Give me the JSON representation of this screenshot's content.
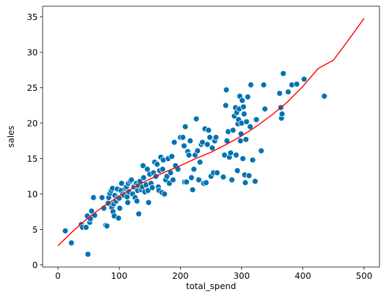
{
  "chart_data": {
    "type": "scatter",
    "title": "",
    "xlabel": "total_spend",
    "ylabel": "sales",
    "xlim": [
      -25,
      525
    ],
    "ylim": [
      -0.3,
      36.5
    ],
    "x_ticks": [
      0,
      100,
      200,
      300,
      400,
      500
    ],
    "y_ticks": [
      0,
      5,
      10,
      15,
      20,
      25,
      30,
      35
    ],
    "grid": false,
    "legend": "none",
    "colors": {
      "points": "#0173b2",
      "point_edge": "#ffffff",
      "fit_line": "#ff0000",
      "axis": "#000000"
    },
    "series": [
      {
        "kind": "scatter",
        "points": [
          [
            12,
            4.8
          ],
          [
            22,
            3.1
          ],
          [
            38,
            5.7
          ],
          [
            40,
            5.3
          ],
          [
            46,
            5.3
          ],
          [
            48,
            6.9
          ],
          [
            49,
            1.5
          ],
          [
            52,
            6.0
          ],
          [
            53,
            6.5
          ],
          [
            55,
            7.6
          ],
          [
            58,
            9.5
          ],
          [
            60,
            7.0
          ],
          [
            72,
            9.5
          ],
          [
            75,
            8.0
          ],
          [
            78,
            5.6
          ],
          [
            80,
            5.5
          ],
          [
            82,
            8.7
          ],
          [
            83,
            9.5
          ],
          [
            85,
            10.1
          ],
          [
            87,
            10.5
          ],
          [
            88,
            8.1
          ],
          [
            89,
            10.8
          ],
          [
            90,
            7.5
          ],
          [
            91,
            8.6
          ],
          [
            92,
            6.9
          ],
          [
            93,
            9.8
          ],
          [
            95,
            9.0
          ],
          [
            97,
            10.7
          ],
          [
            98,
            9.5
          ],
          [
            99,
            6.6
          ],
          [
            100,
            9.4
          ],
          [
            101,
            8.0
          ],
          [
            103,
            10.5
          ],
          [
            104,
            11.5
          ],
          [
            106,
            10.0
          ],
          [
            108,
            9.8
          ],
          [
            110,
            10.8
          ],
          [
            112,
            11.0
          ],
          [
            113,
            9.6
          ],
          [
            114,
            8.8
          ],
          [
            115,
            11.5
          ],
          [
            116,
            10.3
          ],
          [
            118,
            11.8
          ],
          [
            120,
            12.0
          ],
          [
            122,
            10.0
          ],
          [
            124,
            11.0
          ],
          [
            126,
            9.5
          ],
          [
            128,
            11.5
          ],
          [
            129,
            9.0
          ],
          [
            130,
            10.5
          ],
          [
            131,
            11.2
          ],
          [
            132,
            7.2
          ],
          [
            134,
            11.8
          ],
          [
            136,
            10.6
          ],
          [
            138,
            11.0
          ],
          [
            139,
            14.0
          ],
          [
            140,
            12.3
          ],
          [
            142,
            10.3
          ],
          [
            144,
            11.3
          ],
          [
            146,
            13.5
          ],
          [
            147,
            10.5
          ],
          [
            148,
            8.8
          ],
          [
            150,
            12.8
          ],
          [
            152,
            11.5
          ],
          [
            154,
            10.9
          ],
          [
            156,
            13.0
          ],
          [
            158,
            14.5
          ],
          [
            160,
            12.5
          ],
          [
            162,
            14.2
          ],
          [
            164,
            11.0
          ],
          [
            165,
            10.5
          ],
          [
            166,
            13.3
          ],
          [
            168,
            15.2
          ],
          [
            170,
            10.2
          ],
          [
            171,
            13.5
          ],
          [
            172,
            14.8
          ],
          [
            174,
            10.0
          ],
          [
            176,
            12.0
          ],
          [
            178,
            12.5
          ],
          [
            180,
            15.0
          ],
          [
            182,
            11.5
          ],
          [
            184,
            13.0
          ],
          [
            186,
            15.3
          ],
          [
            188,
            12.0
          ],
          [
            190,
            17.3
          ],
          [
            192,
            14.0
          ],
          [
            196,
            13.5
          ],
          [
            200,
            18.0
          ],
          [
            204,
            18.0
          ],
          [
            206,
            16.8
          ],
          [
            207,
            11.7
          ],
          [
            208,
            19.5
          ],
          [
            210,
            11.7
          ],
          [
            212,
            16.0
          ],
          [
            214,
            15.5
          ],
          [
            216,
            17.5
          ],
          [
            218,
            12.3
          ],
          [
            220,
            10.6
          ],
          [
            222,
            13.5
          ],
          [
            224,
            15.5
          ],
          [
            226,
            20.6
          ],
          [
            228,
            16.1
          ],
          [
            230,
            12.0
          ],
          [
            232,
            14.5
          ],
          [
            234,
            17.0
          ],
          [
            236,
            17.3
          ],
          [
            238,
            11.5
          ],
          [
            240,
            19.2
          ],
          [
            242,
            11.6
          ],
          [
            244,
            17.0
          ],
          [
            246,
            19.0
          ],
          [
            248,
            18.0
          ],
          [
            250,
            12.5
          ],
          [
            252,
            16.5
          ],
          [
            254,
            13.0
          ],
          [
            256,
            17.5
          ],
          [
            258,
            18.0
          ],
          [
            260,
            13.0
          ],
          [
            270,
            12.4
          ],
          [
            272,
            15.5
          ],
          [
            274,
            22.5
          ],
          [
            275,
            24.7
          ],
          [
            276,
            17.5
          ],
          [
            278,
            18.8
          ],
          [
            280,
            15.2
          ],
          [
            282,
            15.8
          ],
          [
            284,
            12.0
          ],
          [
            286,
            19.0
          ],
          [
            288,
            21.0
          ],
          [
            290,
            22.2
          ],
          [
            291,
            15.5
          ],
          [
            292,
            21.5
          ],
          [
            293,
            13.3
          ],
          [
            294,
            19.9
          ],
          [
            295,
            20.5
          ],
          [
            296,
            22.0
          ],
          [
            297,
            23.8
          ],
          [
            298,
            17.5
          ],
          [
            299,
            18.5
          ],
          [
            300,
            20.0
          ],
          [
            301,
            23.2
          ],
          [
            302,
            15.0
          ],
          [
            303,
            22.3
          ],
          [
            304,
            21.3
          ],
          [
            305,
            12.7
          ],
          [
            306,
            11.6
          ],
          [
            307,
            17.7
          ],
          [
            308,
            20.2
          ],
          [
            310,
            23.7
          ],
          [
            312,
            12.6
          ],
          [
            314,
            19.5
          ],
          [
            315,
            25.4
          ],
          [
            318,
            14.8
          ],
          [
            322,
            11.8
          ],
          [
            324,
            20.5
          ],
          [
            332,
            16.1
          ],
          [
            336,
            25.4
          ],
          [
            338,
            22.0
          ],
          [
            362,
            24.2
          ],
          [
            364,
            22.2
          ],
          [
            365,
            20.7
          ],
          [
            366,
            21.3
          ],
          [
            368,
            27.0
          ],
          [
            376,
            24.4
          ],
          [
            382,
            25.4
          ],
          [
            390,
            25.5
          ],
          [
            402,
            26.2
          ],
          [
            435,
            23.8
          ]
        ]
      },
      {
        "kind": "line",
        "x": [
          0,
          25,
          50,
          75,
          100,
          125,
          150,
          175,
          200,
          225,
          250,
          275,
          300,
          325,
          350,
          375,
          400,
          425,
          450,
          475,
          500
        ],
        "y": [
          2.7,
          4.8,
          6.7,
          8.3,
          9.7,
          11.0,
          12.1,
          13.1,
          14.0,
          15.0,
          15.9,
          17.0,
          18.2,
          19.6,
          21.2,
          23.0,
          25.2,
          27.7,
          28.9,
          31.8,
          34.8
        ]
      }
    ]
  }
}
